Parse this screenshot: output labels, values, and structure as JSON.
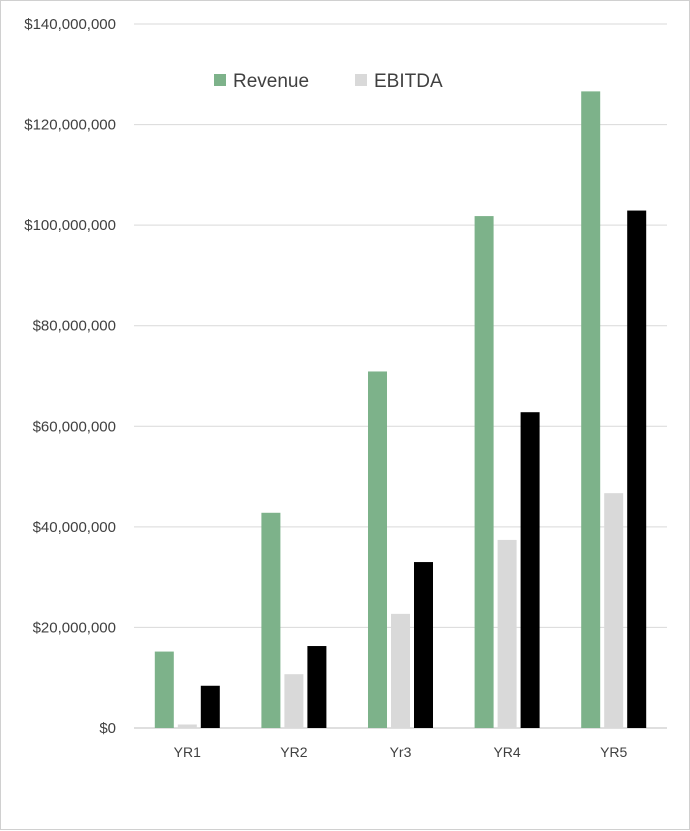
{
  "chart_data": {
    "type": "bar",
    "title": "",
    "xlabel": "",
    "ylabel": "",
    "categories": [
      "YR1",
      "YR2",
      "Yr3",
      "YR4",
      "YR5"
    ],
    "series": [
      {
        "name": "Revenue",
        "color": "#7db28a",
        "values": [
          15200000,
          42800000,
          70900000,
          101800000,
          126600000
        ]
      },
      {
        "name": "EBITDA",
        "color": "#d9d9d9",
        "values": [
          700000,
          10700000,
          22700000,
          37400000,
          46700000
        ]
      },
      {
        "color": "#000000",
        "values": [
          8400000,
          16300000,
          33000000,
          62800000,
          102900000
        ]
      }
    ],
    "ylim": [
      0,
      140000000
    ],
    "yticks": [
      0,
      20000000,
      40000000,
      60000000,
      80000000,
      100000000,
      120000000,
      140000000
    ],
    "ytick_labels": [
      "$0",
      "$20,000,000",
      "$40,000,000",
      "$60,000,000",
      "$80,000,000",
      "$100,000,000",
      "$120,000,000",
      "$140,000,000"
    ],
    "grid": true,
    "legend_position": "top"
  }
}
